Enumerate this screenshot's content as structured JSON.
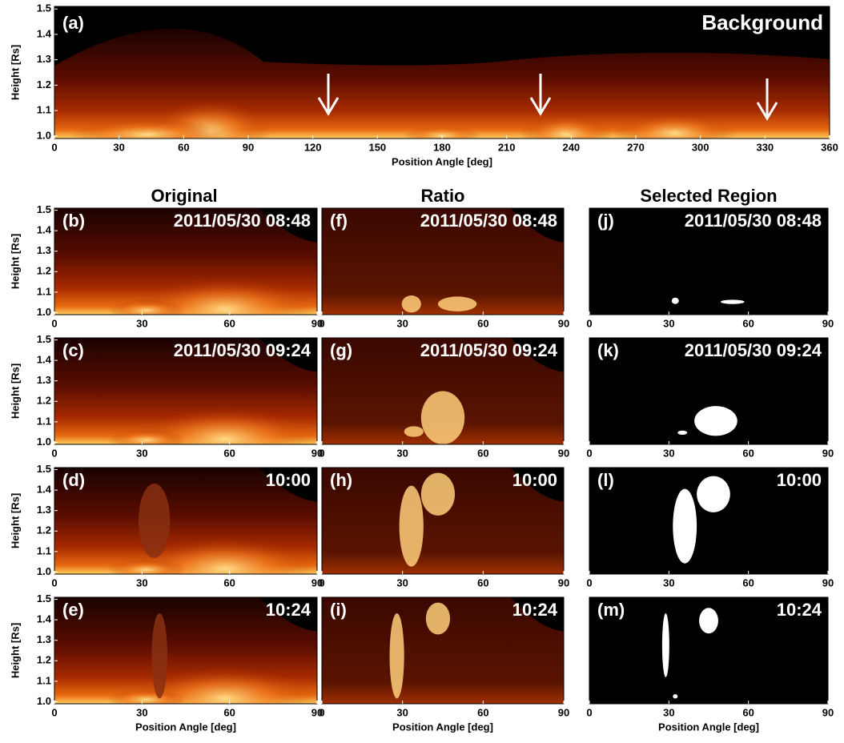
{
  "column_titles": [
    "Original",
    "Ratio",
    "Selected Region"
  ],
  "chart_data": [
    {
      "type": "image",
      "panel": "(a)",
      "title": "Background",
      "xlabel": "Position Angle [deg]",
      "ylabel": "Height [Rs]",
      "xlim": [
        0,
        360
      ],
      "xticks": [
        0,
        30,
        60,
        90,
        120,
        150,
        180,
        210,
        240,
        270,
        300,
        330,
        360
      ],
      "ylim": [
        0.99,
        1.51
      ],
      "yticks": [
        {
          "value": 1,
          "label": "1.0"
        },
        1.1,
        1.2,
        1.3,
        1.4,
        1.5
      ]
    },
    {
      "type": "image",
      "panel": "(b)",
      "title": "2011/05/30 08:48",
      "ylabel": "Height [Rs]",
      "xlim": [
        0,
        90
      ],
      "xticks": [
        0,
        30,
        60,
        90
      ],
      "ylim": [
        0.99,
        1.51
      ],
      "yticks": [
        {
          "value": 1,
          "label": "1.0"
        },
        1.1,
        1.2,
        1.3,
        1.4,
        1.5
      ]
    },
    {
      "type": "image",
      "panel": "(c)",
      "title": "2011/05/30 09:24",
      "ylabel": "Height [Rs]",
      "xlim": [
        0,
        90
      ],
      "xticks": [
        0,
        30,
        60,
        90
      ],
      "ylim": [
        0.99,
        1.51
      ],
      "yticks": [
        {
          "value": 1,
          "label": "1.0"
        },
        1.1,
        1.2,
        1.3,
        1.4,
        1.5
      ]
    },
    {
      "type": "image",
      "panel": "(d)",
      "title": "10:00",
      "ylabel": "Height [Rs]",
      "xlim": [
        0,
        90
      ],
      "xticks": [
        0,
        30,
        60,
        90
      ],
      "ylim": [
        0.99,
        1.51
      ],
      "yticks": [
        {
          "value": 1,
          "label": "1.0"
        },
        1.1,
        1.2,
        1.3,
        1.4,
        1.5
      ]
    },
    {
      "type": "image",
      "panel": "(e)",
      "title": "10:24",
      "xlabel": "Position Angle [deg]",
      "ylabel": "Height [Rs]",
      "xlim": [
        0,
        90
      ],
      "xticks": [
        0,
        30,
        60,
        90
      ],
      "ylim": [
        0.99,
        1.51
      ],
      "yticks": [
        {
          "value": 1,
          "label": "1.0"
        },
        1.1,
        1.2,
        1.3,
        1.4,
        1.5
      ]
    },
    {
      "type": "image",
      "panel": "(f)",
      "title": "2011/05/30 08:48",
      "xlim": [
        0,
        90
      ],
      "xticks": [
        0,
        30,
        60,
        90
      ],
      "ylim": [
        0.99,
        1.51
      ]
    },
    {
      "type": "image",
      "panel": "(g)",
      "title": "2011/05/30 09:24",
      "xlim": [
        0,
        90
      ],
      "xticks": [
        0,
        30,
        60,
        90
      ],
      "ylim": [
        0.99,
        1.51
      ]
    },
    {
      "type": "image",
      "panel": "(h)",
      "title": "10:00",
      "xlim": [
        0,
        90
      ],
      "xticks": [
        0,
        30,
        60,
        90
      ],
      "ylim": [
        0.99,
        1.51
      ]
    },
    {
      "type": "image",
      "panel": "(i)",
      "title": "10:24",
      "xlabel": "Position Angle [deg]",
      "xlim": [
        0,
        90
      ],
      "xticks": [
        0,
        30,
        60,
        90
      ],
      "ylim": [
        0.99,
        1.51
      ]
    },
    {
      "type": "image",
      "panel": "(j)",
      "title": "2011/05/30 08:48",
      "xlim": [
        0,
        90
      ],
      "xticks": [
        0,
        30,
        60,
        90
      ],
      "ylim": [
        0.99,
        1.51
      ]
    },
    {
      "type": "image",
      "panel": "(k)",
      "title": "2011/05/30 09:24",
      "xlim": [
        0,
        90
      ],
      "xticks": [
        0,
        30,
        60,
        90
      ],
      "ylim": [
        0.99,
        1.51
      ]
    },
    {
      "type": "image",
      "panel": "(l)",
      "title": "10:00",
      "xlim": [
        0,
        90
      ],
      "xticks": [
        0,
        30,
        60,
        90
      ],
      "ylim": [
        0.99,
        1.51
      ]
    },
    {
      "type": "image",
      "panel": "(m)",
      "title": "10:24",
      "xlabel": "Position Angle [deg]",
      "xlim": [
        0,
        90
      ],
      "xticks": [
        0,
        30,
        60,
        90
      ],
      "ylim": [
        0.99,
        1.51
      ]
    }
  ]
}
